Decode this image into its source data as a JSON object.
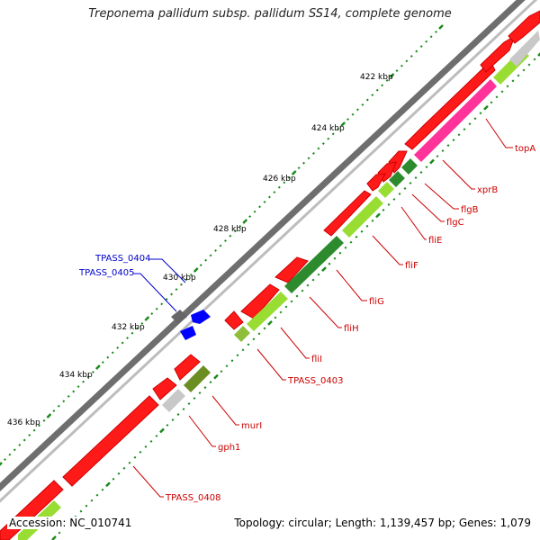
{
  "title": "Treponema pallidum subsp. pallidum SS14, complete genome",
  "footer": {
    "accession": "Accession: NC_010741",
    "summary": "Topology: circular; Length: 1,139,457 bp; Genes: 1,079"
  },
  "colors": {
    "backbone": "#8c8c8c",
    "forward_gene": "#ff0000",
    "forward_gene_dark": "#cc0000",
    "tick": "#1a8a1a",
    "feature_label": "#cc0000",
    "blue_label": "#0000cc",
    "pink": "#ff3399",
    "light_green": "#99dd33",
    "dark_green": "#2d8b2d",
    "olive": "#6b8e23",
    "gray_feature": "#c8c8c8",
    "blue_feature": "#0000ff"
  },
  "scale_labels": [
    {
      "text": "422 kbp"
    },
    {
      "text": "424 kbp"
    },
    {
      "text": "426 kbp"
    },
    {
      "text": "428 kbp"
    },
    {
      "text": "430 kbp"
    },
    {
      "text": "432 kbp"
    },
    {
      "text": "434 kbp"
    },
    {
      "text": "436 kbp"
    }
  ],
  "gene_labels": [
    {
      "text": "topA"
    },
    {
      "text": "xprB"
    },
    {
      "text": "flgB"
    },
    {
      "text": "flgC"
    },
    {
      "text": "fliE"
    },
    {
      "text": "fliF"
    },
    {
      "text": "fliG"
    },
    {
      "text": "fliH"
    },
    {
      "text": "fliI"
    },
    {
      "text": "TPASS_0403"
    },
    {
      "text": "murI"
    },
    {
      "text": "gph1"
    },
    {
      "text": "TPASS_0408"
    }
  ],
  "blue_labels": [
    {
      "text": "TPASS_0404"
    },
    {
      "text": "TPASS_0405"
    }
  ]
}
